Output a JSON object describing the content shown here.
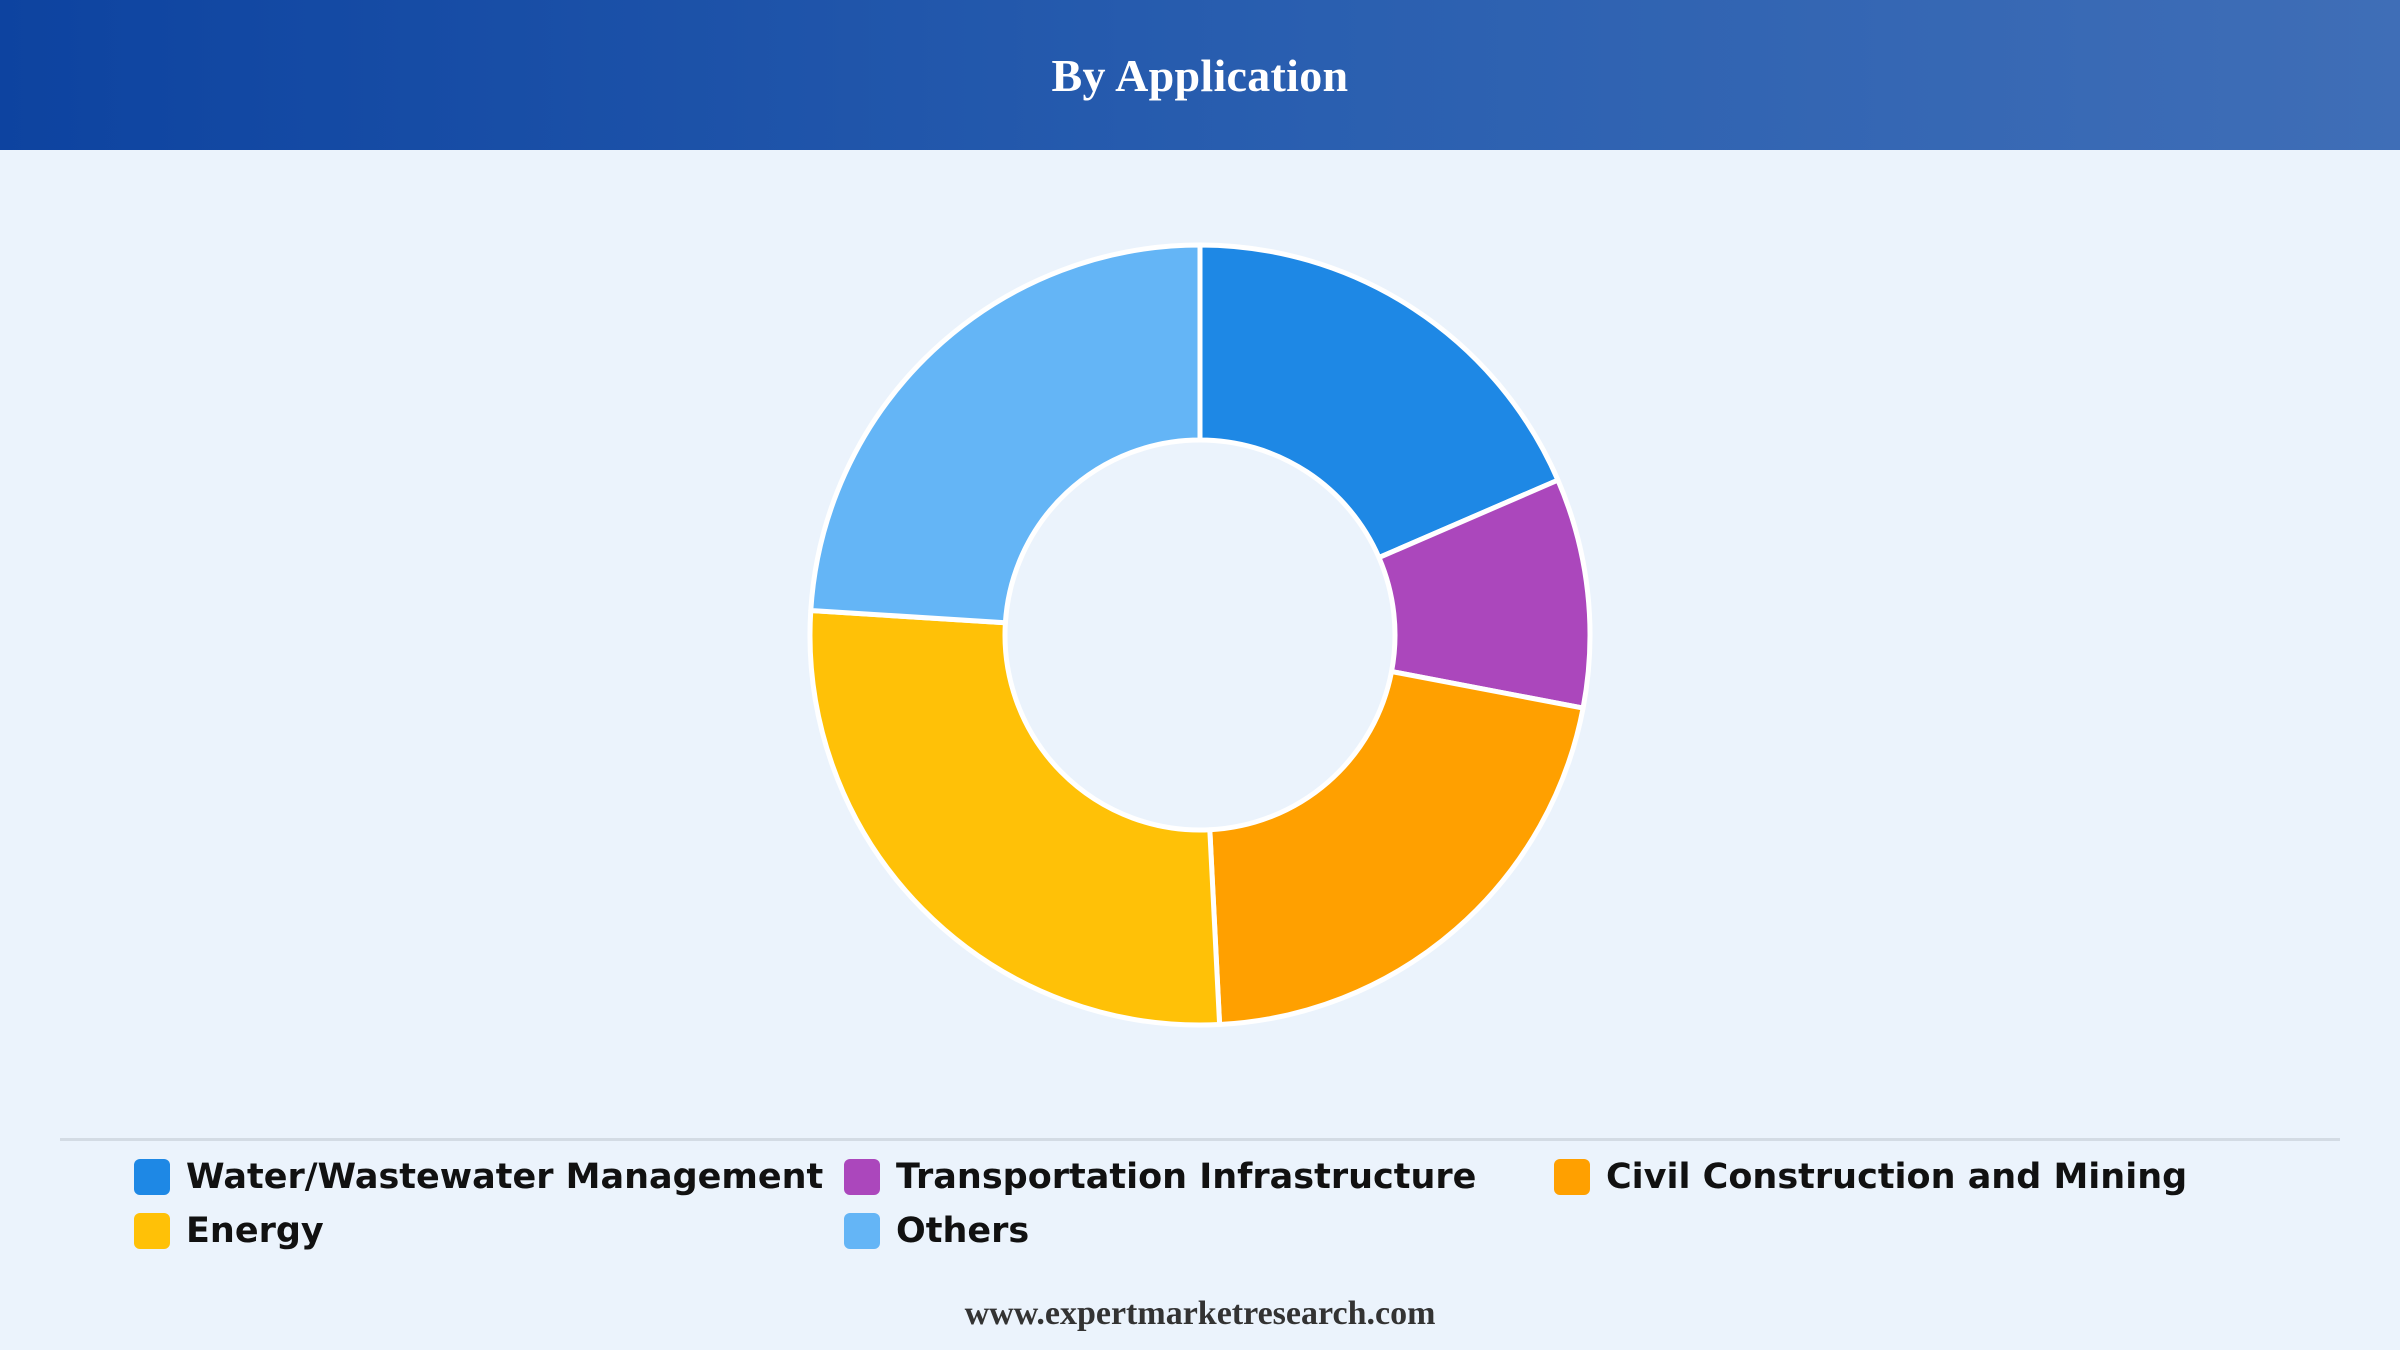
{
  "header": {
    "title": "By Application"
  },
  "footer": {
    "source": "www.expertmarketresearch.com"
  },
  "chart_data": {
    "type": "pie",
    "style": "donut",
    "title": "By Application",
    "categories": [
      "Water/Wastewater Management",
      "Transportation Infrastructure",
      "Civil Construction and Mining",
      "Energy",
      "Others"
    ],
    "values": [
      18.5,
      9.5,
      21.2,
      26.8,
      24.0
    ],
    "colors": [
      "#1E88E5",
      "#AB47BC",
      "#FFA000",
      "#FFC107",
      "#64B5F6"
    ],
    "legend_position": "bottom",
    "data_labels": false,
    "grid": false
  }
}
